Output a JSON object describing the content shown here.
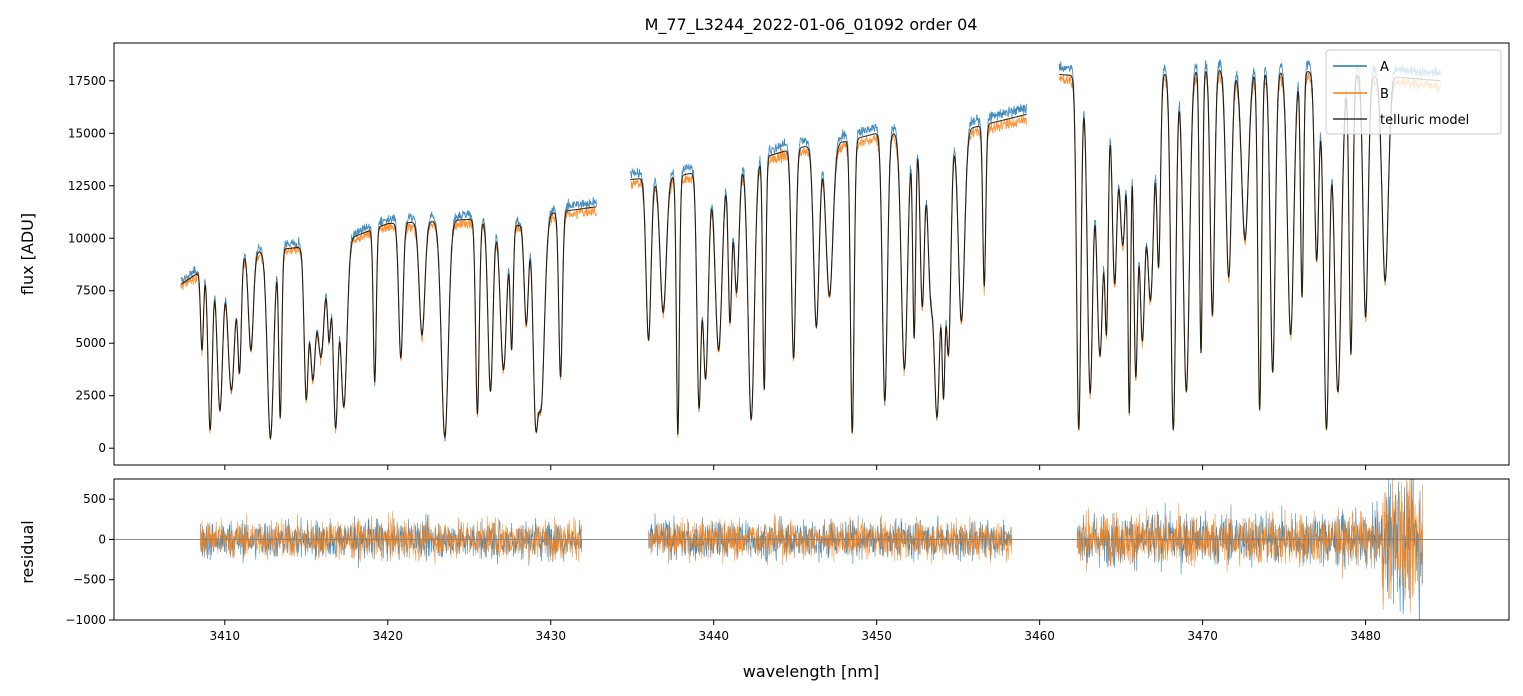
{
  "chart_data": {
    "type": "line",
    "title": "M_77_L3244_2022-01-06_01092  order 04",
    "xlabel": "wavelength [nm]",
    "xlim": [
      3403.2,
      3488.8
    ],
    "x_ticks": [
      3410,
      3420,
      3430,
      3440,
      3450,
      3460,
      3470,
      3480
    ],
    "x_tick_labels": [
      "3410",
      "3420",
      "3430",
      "3440",
      "3450",
      "3460",
      "3470",
      "3480"
    ],
    "colors": {
      "A": "#1f77b4",
      "B": "#ff7f0e",
      "model": "#000000",
      "zero_line": "#808080"
    },
    "panels": [
      {
        "name": "flux",
        "ylabel": "flux [ADU]",
        "ylim": [
          -800,
          19300
        ],
        "y_ticks": [
          0,
          2500,
          5000,
          7500,
          10000,
          12500,
          15000,
          17500
        ],
        "y_tick_labels": [
          "0",
          "2500",
          "5000",
          "7500",
          "10000",
          "12500",
          "15000",
          "17500"
        ],
        "legend": {
          "position": "top-right",
          "entries": [
            "A",
            "B",
            "telluric model"
          ]
        },
        "series": [
          {
            "name": "A",
            "role": "A"
          },
          {
            "name": "B",
            "role": "B"
          },
          {
            "name": "telluric model",
            "role": "model"
          }
        ],
        "segments": [
          {
            "x_range": [
              3407.3,
              3432.8
            ],
            "continuum": [
              [
                3407.3,
                7800
              ],
              [
                3410,
                9200
              ],
              [
                3415,
                9600
              ],
              [
                3417,
                9800
              ],
              [
                3420,
                10700
              ],
              [
                3425,
                10900
              ],
              [
                3428,
                10600
              ],
              [
                3430,
                11200
              ],
              [
                3432.8,
                11500
              ]
            ]
          },
          {
            "x_range": [
              3434.9,
              3459.2
            ],
            "continuum": [
              [
                3434.9,
                12800
              ],
              [
                3438,
                13000
              ],
              [
                3442,
                13600
              ],
              [
                3445,
                14300
              ],
              [
                3448,
                14600
              ],
              [
                3450,
                15000
              ],
              [
                3455,
                15100
              ],
              [
                3459.2,
                15900
              ]
            ]
          },
          {
            "x_range": [
              3461.2,
              3484.6
            ],
            "continuum": [
              [
                3461.2,
                17800
              ],
              [
                3465,
                17600
              ],
              [
                3470,
                18100
              ],
              [
                3475,
                18000
              ],
              [
                3480,
                17800
              ],
              [
                3484.6,
                17500
              ]
            ]
          }
        ],
        "absorption_lines_nm": [
          3408.6,
          3409.1,
          3409.7,
          3410.4,
          3410.9,
          3411.6,
          3412.8,
          3413.4,
          3415.0,
          3415.4,
          3415.9,
          3416.4,
          3416.8,
          3417.3,
          3419.2,
          3420.8,
          3422.1,
          3423.5,
          3425.5,
          3426.3,
          3427.1,
          3427.6,
          3428.5,
          3429.1,
          3429.4,
          3430.6,
          3436.0,
          3436.9,
          3437.8,
          3439.1,
          3439.5,
          3440.3,
          3441.0,
          3441.4,
          3442.3,
          3443.1,
          3444.9,
          3446.3,
          3447.1,
          3448.5,
          3450.5,
          3451.7,
          3452.3,
          3452.8,
          3453.3,
          3453.7,
          3454.1,
          3454.4,
          3455.2,
          3456.6,
          3462.4,
          3463.1,
          3463.7,
          3464.1,
          3464.6,
          3465.1,
          3465.5,
          3465.9,
          3466.3,
          3466.8,
          3467.3,
          3468.2,
          3469.0,
          3469.9,
          3470.6,
          3471.6,
          3472.6,
          3473.5,
          3474.3,
          3475.4,
          3476.1,
          3477.0,
          3477.6,
          3478.3,
          3479.1,
          3480.0,
          3481.2
        ]
      },
      {
        "name": "residual",
        "ylabel": "residual",
        "ylim": [
          -1000,
          750
        ],
        "y_ticks": [
          -1000,
          -500,
          0,
          500
        ],
        "y_tick_labels": [
          "−1000",
          "−500",
          "0",
          "500"
        ],
        "zero_line": 0,
        "noise_segments": [
          {
            "x_range": [
              3408.5,
              3431.9
            ],
            "rms": 170
          },
          {
            "x_range": [
              3436.0,
              3458.3
            ],
            "rms": 170
          },
          {
            "x_range": [
              3462.3,
              3483.5
            ],
            "rms": 230
          }
        ],
        "series": [
          {
            "name": "A",
            "role": "A"
          },
          {
            "name": "B",
            "role": "B"
          }
        ]
      }
    ]
  }
}
